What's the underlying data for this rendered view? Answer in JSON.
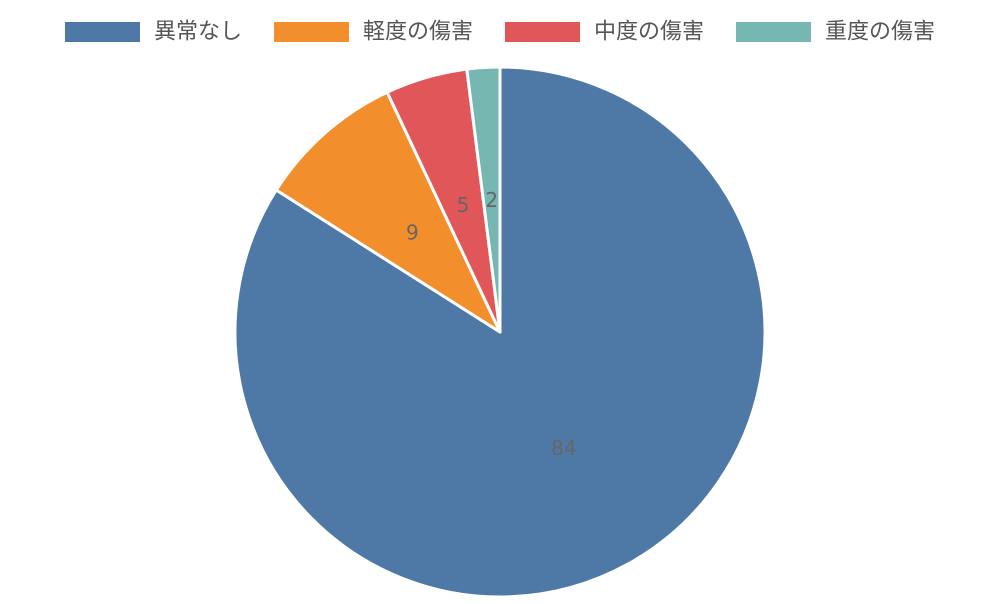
{
  "chart_data": {
    "type": "pie",
    "categories": [
      "異常なし",
      "軽度の傷害",
      "中度の傷害",
      "重度の傷害"
    ],
    "values": [
      84,
      9,
      5,
      2
    ],
    "colors": [
      "#4e79a7",
      "#f28e2b",
      "#e15759",
      "#76b7b2"
    ],
    "legend_position": "top",
    "data_labels": true,
    "start_angle": "12-o'clock",
    "direction": "clockwise"
  }
}
